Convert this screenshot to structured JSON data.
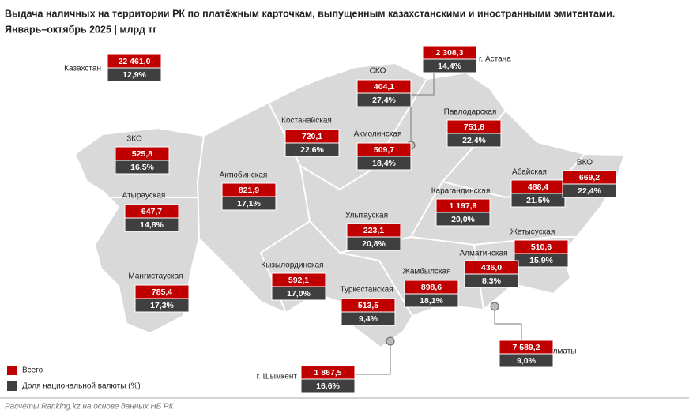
{
  "header": {
    "title": "Выдача наличных на территории РК по платёжным карточкам, выпущенным казахстанскими и иностранными эмитентами.",
    "subtitle": "Январь–октябрь 2025 | млрд тг"
  },
  "regions": [
    {
      "name": "Казахстан",
      "total": "22 461,0",
      "share": "12,9%"
    },
    {
      "name": "СКО",
      "total": "404,1",
      "share": "27,4%"
    },
    {
      "name": "г. Астана",
      "total": "2 308,3",
      "share": "14,4%"
    },
    {
      "name": "Павлодарская",
      "total": "751,8",
      "share": "22,4%"
    },
    {
      "name": "Костанайская",
      "total": "720,1",
      "share": "22,6%"
    },
    {
      "name": "Акмолинская",
      "total": "509,7",
      "share": "18,4%"
    },
    {
      "name": "ЗКО",
      "total": "525,8",
      "share": "16,5%"
    },
    {
      "name": "Актюбинская",
      "total": "821,9",
      "share": "17,1%"
    },
    {
      "name": "Абайская",
      "total": "488,4",
      "share": "21,5%"
    },
    {
      "name": "ВКО",
      "total": "669,2",
      "share": "22,4%"
    },
    {
      "name": "Карагандинская",
      "total": "1 197,9",
      "share": "20,0%"
    },
    {
      "name": "Атырауская",
      "total": "647,7",
      "share": "14,8%"
    },
    {
      "name": "Улытауская",
      "total": "223,1",
      "share": "20,8%"
    },
    {
      "name": "Жетысуская",
      "total": "510,6",
      "share": "15,9%"
    },
    {
      "name": "Алматинская",
      "total": "436,0",
      "share": "8,3%"
    },
    {
      "name": "Мангистауская",
      "total": "785,4",
      "share": "17,3%"
    },
    {
      "name": "Кызылординская",
      "total": "592,1",
      "share": "17,0%"
    },
    {
      "name": "Жамбылская",
      "total": "898,6",
      "share": "18,1%"
    },
    {
      "name": "Туркестанская",
      "total": "513,5",
      "share": "9,4%"
    },
    {
      "name": "г. Шымкент",
      "total": "1 867,5",
      "share": "16,6%"
    },
    {
      "name": "г. Алматы",
      "total": "7 589,2",
      "share": "9,0%"
    }
  ],
  "legend": {
    "total": "Всего",
    "share": "Доля национальной валюты (%)"
  },
  "footer": "Расчёты Ranking.kz на основе данных НБ РК"
}
